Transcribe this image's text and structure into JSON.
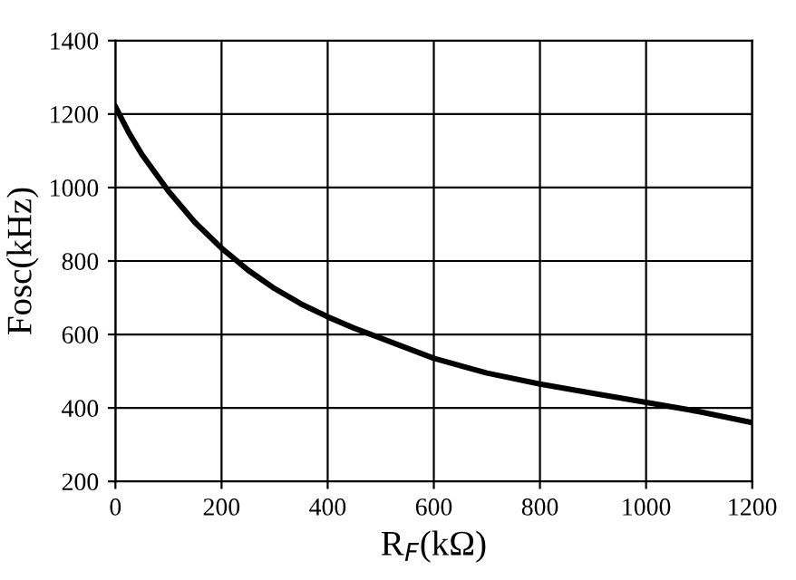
{
  "chart_data": {
    "type": "line",
    "xlabel": "R$_{F}$(kΩ)",
    "ylabel": "Fosc(kHz)",
    "x": [
      0,
      25,
      50,
      100,
      150,
      200,
      250,
      300,
      350,
      400,
      450,
      500,
      600,
      700,
      800,
      900,
      1000,
      1100,
      1200
    ],
    "series": [
      {
        "color": "#000000",
        "values": [
          1220,
          1150,
          1090,
          990,
          905,
          835,
          775,
          725,
          683,
          648,
          617,
          590,
          535,
          495,
          465,
          440,
          415,
          390,
          360
        ]
      }
    ],
    "xlim": [
      0,
      1200
    ],
    "xticks": [
      0,
      200,
      400,
      600,
      800,
      1000,
      1200
    ],
    "ylim": [
      200,
      1400
    ],
    "yticks": [
      200,
      400,
      600,
      800,
      1000,
      1200,
      1400
    ],
    "grid": true,
    "marker": "none",
    "line_style": "solid"
  }
}
